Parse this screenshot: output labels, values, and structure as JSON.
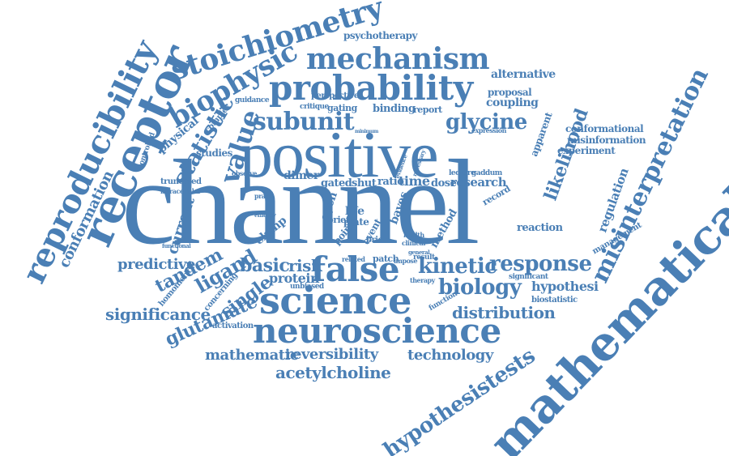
{
  "accent_color": "#4a7fb5",
  "words": [
    "channel",
    "positive",
    "science",
    "neuroscience",
    "mathematical",
    "receptor",
    "reproducibility",
    "probability",
    "mechanism",
    "stoichiometry",
    "biophysic",
    "false",
    "subunit",
    "glycine",
    "value",
    "statistic",
    "kinetic",
    "response",
    "biology",
    "misinterpretation",
    "hypothesistests",
    "acetylcholine",
    "distribution",
    "reversibility",
    "technology",
    "mathematic",
    "glutamate",
    "significance",
    "tandem",
    "ligand",
    "single",
    "basic",
    "risk",
    "protein",
    "predictive",
    "hypothesi",
    "likelihood",
    "regulation",
    "conformation",
    "psychotherapy",
    "perspective",
    "alternative",
    "proposal",
    "coupling",
    "conformational",
    "misinformation",
    "experiment",
    "apparent",
    "research",
    "dimer",
    "gated",
    "shut",
    "ratio",
    "time",
    "dose",
    "method",
    "reaction",
    "physical",
    "studies",
    "current",
    "clamp",
    "open",
    "life",
    "bayes",
    "plate",
    "event",
    "point",
    "brief",
    "prior",
    "patch",
    "result",
    "impose",
    "related",
    "therapy",
    "significant",
    "biostatistic",
    "management",
    "function",
    "activation",
    "homomeric",
    "concerning",
    "unbiased",
    "controlled",
    "truncated",
    "intracellular",
    "guidance",
    "critique",
    "gating",
    "binding",
    "report",
    "complex",
    "observe",
    "lecture",
    "gaddum",
    "record",
    "expression",
    "praise",
    "efficacy",
    "functional",
    "clinical",
    "health",
    "general",
    "evidence",
    "minimum",
    "necessary"
  ]
}
